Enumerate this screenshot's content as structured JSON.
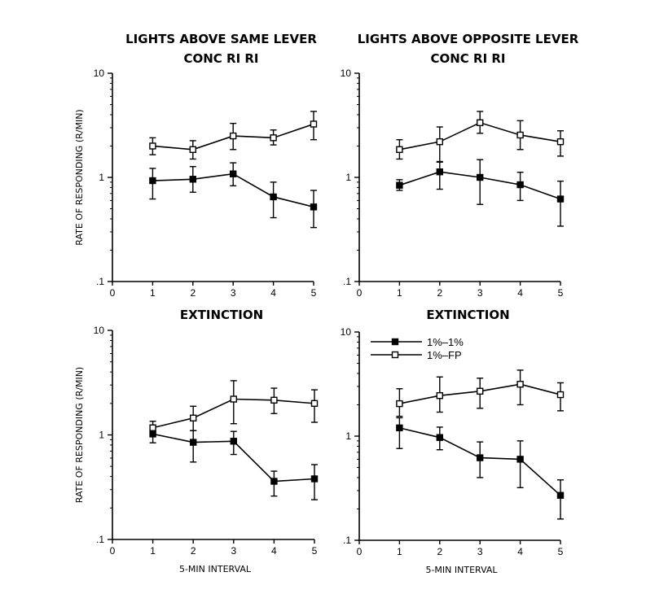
{
  "chart_data": [
    {
      "type": "line",
      "title_lines": [
        "LIGHTS ABOVE SAME LEVER",
        "CONC RI RI"
      ],
      "xlabel": "",
      "ylabel": "RATE OF RESPONDING (R/MIN)",
      "x": [
        1,
        2,
        3,
        4,
        5
      ],
      "xticks": [
        0,
        1,
        2,
        3,
        4,
        5
      ],
      "yticks": [
        0.1,
        1,
        10
      ],
      "ytick_labels": [
        ".1",
        "1",
        "10"
      ],
      "xlim": [
        0,
        5
      ],
      "ylim": [
        0.1,
        10
      ],
      "yscale": "log",
      "series": [
        {
          "marker": "filled-square",
          "values": [
            0.93,
            0.96,
            1.08,
            0.65,
            0.52
          ],
          "err_low": [
            0.62,
            0.72,
            0.83,
            0.41,
            0.33
          ],
          "err_high": [
            1.22,
            1.27,
            1.38,
            0.9,
            0.75
          ]
        },
        {
          "marker": "open-square",
          "values": [
            2.0,
            1.85,
            2.5,
            2.4,
            3.25
          ],
          "err_low": [
            1.65,
            1.5,
            1.85,
            2.05,
            2.3
          ],
          "err_high": [
            2.4,
            2.25,
            3.3,
            2.85,
            4.3
          ]
        }
      ]
    },
    {
      "type": "line",
      "title_lines": [
        "LIGHTS ABOVE OPPOSITE LEVER",
        "CONC RI RI"
      ],
      "xlabel": "",
      "ylabel": "",
      "x": [
        1,
        2,
        3,
        4,
        5
      ],
      "xticks": [
        0,
        1,
        2,
        3,
        4,
        5
      ],
      "yticks": [
        0.1,
        1,
        10
      ],
      "ytick_labels": [
        ".1",
        "1",
        "10"
      ],
      "xlim": [
        0,
        5
      ],
      "ylim": [
        0.1,
        10
      ],
      "yscale": "log",
      "series": [
        {
          "marker": "filled-square",
          "values": [
            0.84,
            1.13,
            1.0,
            0.85,
            0.62
          ],
          "err_low": [
            0.75,
            0.77,
            0.55,
            0.6,
            0.34
          ],
          "err_high": [
            0.95,
            1.42,
            1.48,
            1.12,
            0.92
          ]
        },
        {
          "marker": "open-square",
          "values": [
            1.85,
            2.2,
            3.35,
            2.55,
            2.2
          ],
          "err_low": [
            1.5,
            1.4,
            2.65,
            1.85,
            1.6
          ],
          "err_high": [
            2.3,
            3.05,
            4.3,
            3.5,
            2.8
          ]
        }
      ]
    },
    {
      "type": "line",
      "title_lines": [
        "EXTINCTION"
      ],
      "xlabel": "5-MIN INTERVAL",
      "ylabel": "RATE OF RESPONDING (R/MIN)",
      "x": [
        1,
        2,
        3,
        4,
        5
      ],
      "xticks": [
        0,
        1,
        2,
        3,
        4,
        5
      ],
      "yticks": [
        0.1,
        1,
        10
      ],
      "ytick_labels": [
        ".1",
        "1",
        "10"
      ],
      "xlim": [
        0,
        5
      ],
      "ylim": [
        0.1,
        10
      ],
      "yscale": "log",
      "series": [
        {
          "marker": "filled-square",
          "values": [
            1.02,
            0.85,
            0.87,
            0.36,
            0.38
          ],
          "err_low": [
            0.84,
            0.55,
            0.65,
            0.26,
            0.24
          ],
          "err_high": [
            1.2,
            1.1,
            1.08,
            0.45,
            0.52
          ]
        },
        {
          "marker": "open-square",
          "values": [
            1.17,
            1.45,
            2.2,
            2.15,
            2.0
          ],
          "err_low": [
            1.06,
            1.1,
            1.28,
            1.6,
            1.32
          ],
          "err_high": [
            1.35,
            1.88,
            3.3,
            2.8,
            2.7
          ]
        }
      ]
    },
    {
      "type": "line",
      "title_lines": [
        "EXTINCTION"
      ],
      "xlabel": "5-MIN INTERVAL",
      "ylabel": "",
      "x": [
        1,
        2,
        3,
        4,
        5
      ],
      "xticks": [
        0,
        1,
        2,
        3,
        4,
        5
      ],
      "yticks": [
        0.1,
        1,
        10
      ],
      "ytick_labels": [
        ".1",
        "1",
        "10"
      ],
      "xlim": [
        0,
        5
      ],
      "ylim": [
        0.1,
        10
      ],
      "yscale": "log",
      "legend": {
        "placement": "top-left",
        "entries": [
          "1%–1%",
          "1%–FP"
        ]
      },
      "series": [
        {
          "name": "1%–1%",
          "marker": "filled-square",
          "values": [
            1.2,
            0.97,
            0.62,
            0.6,
            0.27
          ],
          "err_low": [
            0.76,
            0.74,
            0.4,
            0.32,
            0.16
          ],
          "err_high": [
            1.5,
            1.22,
            0.88,
            0.9,
            0.38
          ]
        },
        {
          "name": "1%–FP",
          "marker": "open-square",
          "values": [
            2.05,
            2.45,
            2.7,
            3.15,
            2.5
          ],
          "err_low": [
            1.55,
            1.7,
            1.85,
            2.0,
            1.75
          ],
          "err_high": [
            2.85,
            3.7,
            3.6,
            4.3,
            3.25
          ]
        }
      ]
    }
  ]
}
